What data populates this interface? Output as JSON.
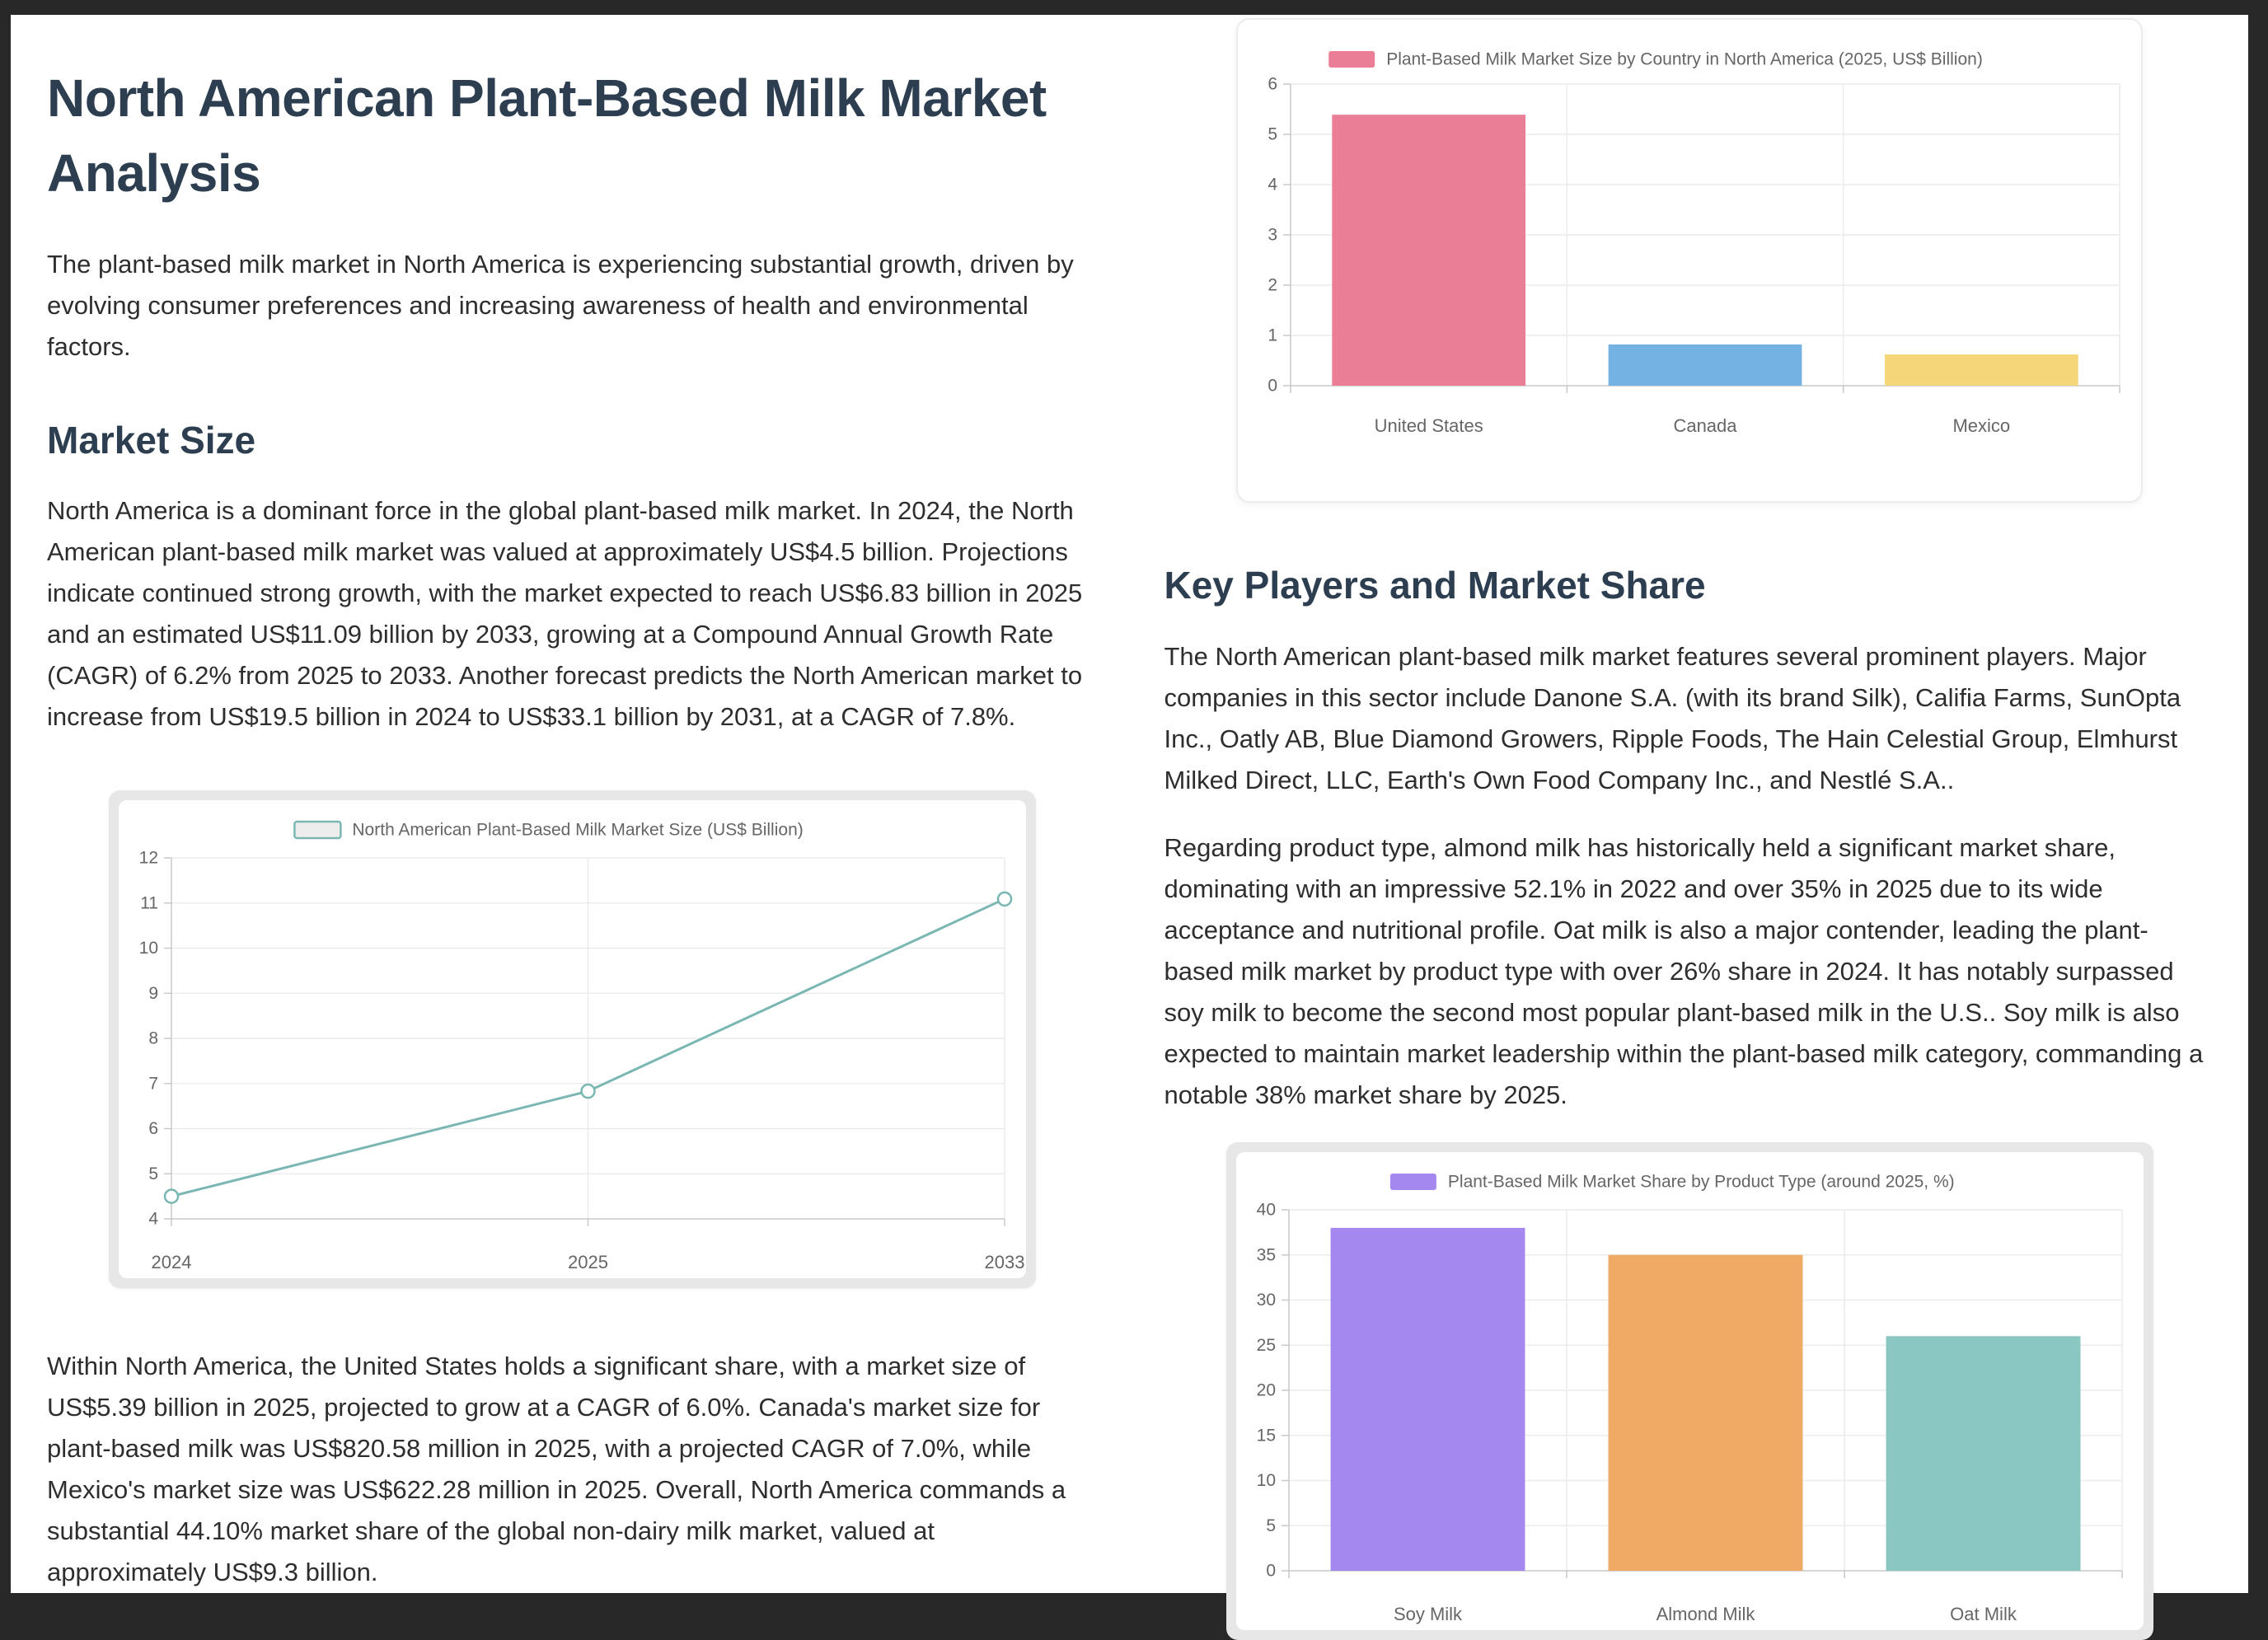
{
  "colors": {
    "page_background": "#282828",
    "surface": "#ffffff",
    "heading": "#2c3e50",
    "body_text": "#2e2e2e",
    "chart_text": "#666666",
    "grid_line": "#ececec",
    "axis_line": "#c9c9c9"
  },
  "document": {
    "title": "North American Plant-Based Milk Market Analysis",
    "intro": "The plant-based milk market in North America is experiencing substantial growth, driven by evolving consumer preferences and increasing awareness of health and environmental factors.",
    "market_size": {
      "heading": "Market Size",
      "paragraph_1": "North America is a dominant force in the global plant-based milk market. In 2024, the North American plant-based milk market was valued at approximately US$4.5 billion. Projections indicate continued strong growth, with the market expected to reach US$6.83 billion in 2025 and an estimated US$11.09 billion by 2033, growing at a Compound Annual Growth Rate (CAGR) of 6.2% from 2025 to 2033. Another forecast predicts the North American market to increase from US$19.5 billion in 2024 to US$33.1 billion by 2031, at a CAGR of 7.8%.",
      "paragraph_2": "Within North America, the United States holds a significant share, with a market size of US$5.39 billion in 2025, projected to grow at a CAGR of 6.0%. Canada's market size for plant-based milk was US$820.58 million in 2025, with a projected CAGR of 7.0%, while Mexico's market size was US$622.28 million in 2025. Overall, North America commands a substantial 44.10% market share of the global non-dairy milk market, valued at approximately US$9.3 billion."
    },
    "key_players": {
      "heading": "Key Players and Market Share",
      "paragraph_1": "The North American plant-based milk market features several prominent players. Major companies in this sector include Danone S.A. (with its brand Silk), Califia Farms, SunOpta Inc., Oatly AB, Blue Diamond Growers, Ripple Foods, The Hain Celestial Group, Elmhurst Milked Direct, LLC, Earth's Own Food Company Inc., and Nestlé S.A..",
      "paragraph_2": "Regarding product type, almond milk has historically held a significant market share, dominating with an impressive 52.1% in 2022 and over 35% in 2025 due to its wide acceptance and nutritional profile. Oat milk is also a major contender, leading the plant-based milk market by product type with over 26% share in 2024. It has notably surpassed soy milk to become the second most popular plant-based milk in the U.S.. Soy milk is also expected to maintain market leadership within the plant-based milk category, commanding a notable 38% market share by 2025."
    }
  },
  "chart_data": [
    {
      "id": "country-market-size-bar",
      "type": "bar",
      "title": "Plant-Based Milk Market Size by Country in North America (2025, US$ Billion)",
      "categories": [
        "United States",
        "Canada",
        "Mexico"
      ],
      "values": [
        5.39,
        0.82,
        0.62
      ],
      "bar_colors": [
        "#e97e96",
        "#74b2e4",
        "#f5d678"
      ],
      "legend_swatch": "#e97e96",
      "xlabel": "",
      "ylabel": "",
      "ylim": [
        0,
        6
      ],
      "ytick_step": 1,
      "grid": true,
      "legend_position": "top"
    },
    {
      "id": "north-america-market-size-line",
      "type": "line",
      "title": "North American Plant-Based Milk Market Size (US$ Billion)",
      "categories": [
        "2024",
        "2025",
        "2033"
      ],
      "values": [
        4.5,
        6.83,
        11.09
      ],
      "line_color": "#7ab7b3",
      "marker": "hollow-circle",
      "legend_swatch_fill": "#ededed",
      "xlabel": "",
      "ylabel": "",
      "ylim": [
        4,
        12
      ],
      "ytick_step": 1,
      "grid": true,
      "legend_position": "top"
    },
    {
      "id": "product-type-share-bar",
      "type": "bar",
      "title": "Plant-Based Milk Market Share by Product Type (around 2025, %)",
      "categories": [
        "Soy Milk",
        "Almond Milk",
        "Oat Milk"
      ],
      "values": [
        38,
        35,
        26
      ],
      "bar_colors": [
        "#a587f0",
        "#efaa66",
        "#8ac7c2"
      ],
      "legend_swatch": "#a587f0",
      "xlabel": "",
      "ylabel": "",
      "ylim": [
        0,
        40
      ],
      "ytick_step": 5,
      "grid": true,
      "legend_position": "top"
    }
  ]
}
